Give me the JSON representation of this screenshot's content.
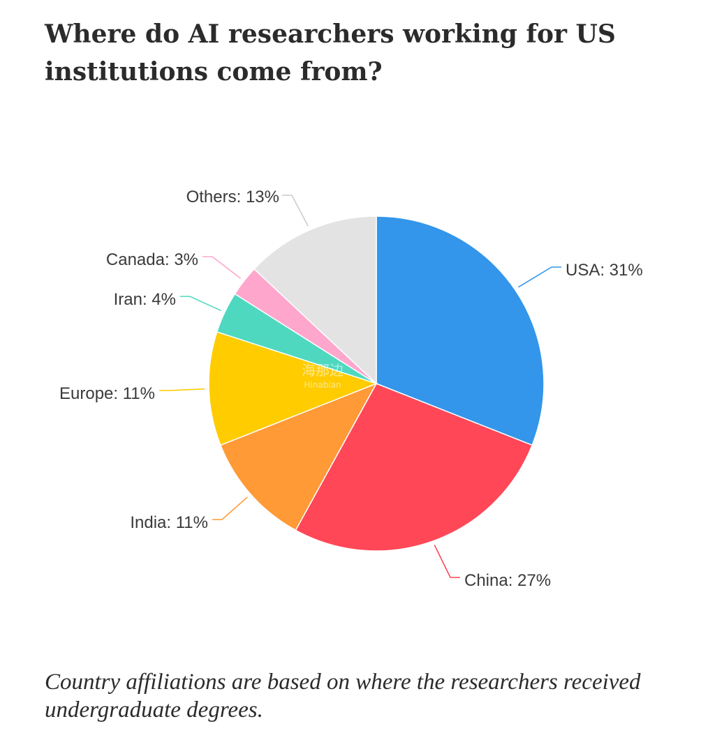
{
  "header": {
    "title": "Where do AI researchers working for US institutions come from?"
  },
  "footer": {
    "caption": "Country affiliations are based on where the researchers received undergraduate degrees."
  },
  "watermark": {
    "line1": "海那边",
    "line2": "Hinabian"
  },
  "chart_data": {
    "type": "pie",
    "title": "Where do AI researchers working for US institutions come from?",
    "start_angle_deg": 0,
    "direction": "clockwise",
    "slices": [
      {
        "name": "USA",
        "value": 31,
        "label": "USA: 31%",
        "color": "#3396ea"
      },
      {
        "name": "China",
        "value": 27,
        "label": "China: 27%",
        "color": "#ff4757"
      },
      {
        "name": "India",
        "value": 11,
        "label": "India: 11%",
        "color": "#ff9a36"
      },
      {
        "name": "Europe",
        "value": 11,
        "label": "Europe: 11%",
        "color": "#ffcc00"
      },
      {
        "name": "Iran",
        "value": 4,
        "label": "Iran: 4%",
        "color": "#4fd8c0"
      },
      {
        "name": "Canada",
        "value": 3,
        "label": "Canada: 3%",
        "color": "#ffa6cd"
      },
      {
        "name": "Others",
        "value": 13,
        "label": "Others: 13%",
        "color": "#e3e3e3"
      }
    ]
  }
}
